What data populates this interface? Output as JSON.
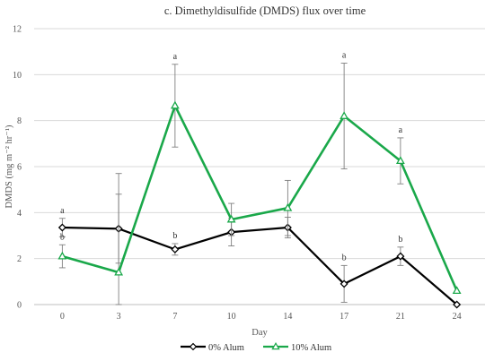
{
  "chart_data": {
    "type": "line",
    "title": "c. Dimethyldisulfide (DMDS) flux over time",
    "xlabel": "Day",
    "ylabel": "DMDS (mg m⁻² hr⁻¹)",
    "categories": [
      "0",
      "3",
      "7",
      "10",
      "14",
      "17",
      "21",
      "24"
    ],
    "ylim": [
      0,
      12
    ],
    "yticks": [
      0,
      2,
      4,
      6,
      8,
      10,
      12
    ],
    "grid": "horizontal",
    "legend_position": "bottom",
    "series": [
      {
        "name": "0% Alum",
        "color": "#000000",
        "marker": "diamond",
        "values": [
          3.35,
          3.3,
          2.4,
          3.15,
          3.35,
          0.9,
          2.1,
          0.0
        ],
        "error": [
          0.4,
          1.5,
          0.25,
          0.6,
          0.45,
          0.8,
          0.4,
          0.0
        ],
        "labels": [
          "a",
          "",
          "b",
          "",
          "",
          "b",
          "b",
          ""
        ]
      },
      {
        "name": "10% Alum",
        "color": "#1aa84a",
        "marker": "triangle",
        "values": [
          2.1,
          1.4,
          8.65,
          3.7,
          4.2,
          8.2,
          6.25,
          0.6
        ],
        "error": [
          0.5,
          4.3,
          1.8,
          0.7,
          1.2,
          2.3,
          1.0,
          0.0
        ],
        "labels": [
          "b",
          "",
          "a",
          "",
          "",
          "a",
          "a",
          ""
        ]
      }
    ]
  }
}
